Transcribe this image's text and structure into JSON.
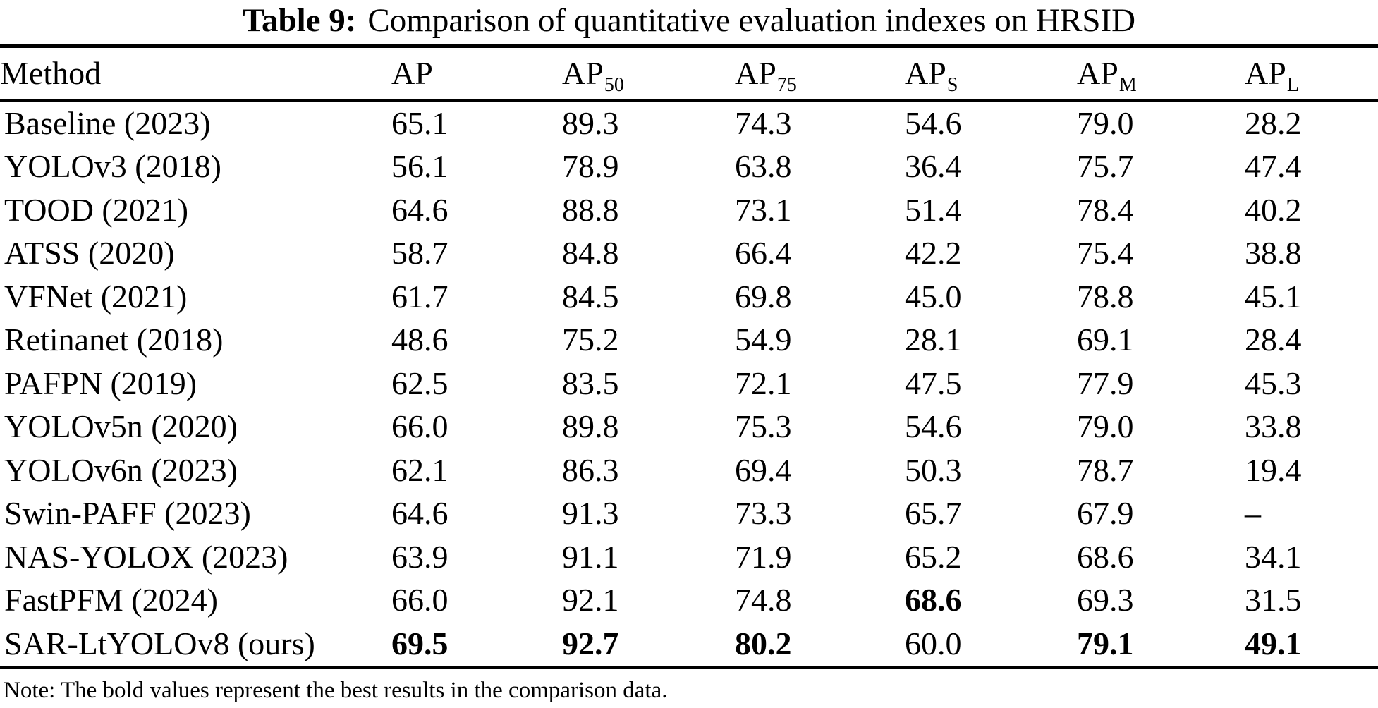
{
  "caption": {
    "label": "Table 9:",
    "text": "Comparison of quantitative evaluation indexes on HRSID"
  },
  "table": {
    "columns": [
      {
        "label": "Method",
        "sub": ""
      },
      {
        "label": "AP",
        "sub": ""
      },
      {
        "label": "AP",
        "sub": "50"
      },
      {
        "label": "AP",
        "sub": "75"
      },
      {
        "label": "AP",
        "sub": "S"
      },
      {
        "label": "AP",
        "sub": "M"
      },
      {
        "label": "AP",
        "sub": "L"
      }
    ],
    "rows": [
      {
        "method": "Baseline (2023)",
        "values": [
          "65.1",
          "89.3",
          "74.3",
          "54.6",
          "79.0",
          "28.2"
        ],
        "bold": [
          false,
          false,
          false,
          false,
          false,
          false
        ]
      },
      {
        "method": "YOLOv3 (2018)",
        "values": [
          "56.1",
          "78.9",
          "63.8",
          "36.4",
          "75.7",
          "47.4"
        ],
        "bold": [
          false,
          false,
          false,
          false,
          false,
          false
        ]
      },
      {
        "method": "TOOD (2021)",
        "values": [
          "64.6",
          "88.8",
          "73.1",
          "51.4",
          "78.4",
          "40.2"
        ],
        "bold": [
          false,
          false,
          false,
          false,
          false,
          false
        ]
      },
      {
        "method": "ATSS (2020)",
        "values": [
          "58.7",
          "84.8",
          "66.4",
          "42.2",
          "75.4",
          "38.8"
        ],
        "bold": [
          false,
          false,
          false,
          false,
          false,
          false
        ]
      },
      {
        "method": "VFNet (2021)",
        "values": [
          "61.7",
          "84.5",
          "69.8",
          "45.0",
          "78.8",
          "45.1"
        ],
        "bold": [
          false,
          false,
          false,
          false,
          false,
          false
        ]
      },
      {
        "method": "Retinanet (2018)",
        "values": [
          "48.6",
          "75.2",
          "54.9",
          "28.1",
          "69.1",
          "28.4"
        ],
        "bold": [
          false,
          false,
          false,
          false,
          false,
          false
        ]
      },
      {
        "method": "PAFPN (2019)",
        "values": [
          "62.5",
          "83.5",
          "72.1",
          "47.5",
          "77.9",
          "45.3"
        ],
        "bold": [
          false,
          false,
          false,
          false,
          false,
          false
        ]
      },
      {
        "method": "YOLOv5n (2020)",
        "values": [
          "66.0",
          "89.8",
          "75.3",
          "54.6",
          "79.0",
          "33.8"
        ],
        "bold": [
          false,
          false,
          false,
          false,
          false,
          false
        ]
      },
      {
        "method": "YOLOv6n (2023)",
        "values": [
          "62.1",
          "86.3",
          "69.4",
          "50.3",
          "78.7",
          "19.4"
        ],
        "bold": [
          false,
          false,
          false,
          false,
          false,
          false
        ]
      },
      {
        "method": "Swin-PAFF (2023)",
        "values": [
          "64.6",
          "91.3",
          "73.3",
          "65.7",
          "67.9",
          "–"
        ],
        "bold": [
          false,
          false,
          false,
          false,
          false,
          false
        ]
      },
      {
        "method": "NAS-YOLOX (2023)",
        "values": [
          "63.9",
          "91.1",
          "71.9",
          "65.2",
          "68.6",
          "34.1"
        ],
        "bold": [
          false,
          false,
          false,
          false,
          false,
          false
        ]
      },
      {
        "method": "FastPFM (2024)",
        "values": [
          "66.0",
          "92.1",
          "74.8",
          "68.6",
          "69.3",
          "31.5"
        ],
        "bold": [
          false,
          false,
          false,
          true,
          false,
          false
        ]
      },
      {
        "method": "SAR-LtYOLOv8 (ours)",
        "values": [
          "69.5",
          "92.7",
          "80.2",
          "60.0",
          "79.1",
          "49.1"
        ],
        "bold": [
          true,
          true,
          true,
          false,
          true,
          true
        ]
      }
    ]
  },
  "note": "Note: The bold values represent the best results in the comparison data."
}
